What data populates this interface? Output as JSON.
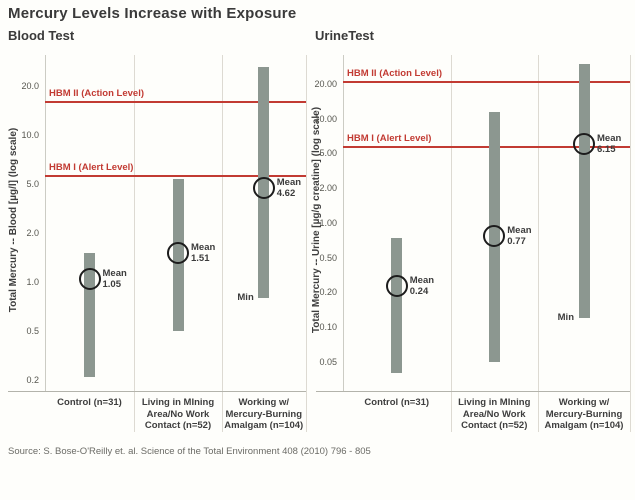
{
  "title": "Mercury Levels Increase with Exposure",
  "source": "Source: S. Bose-O'Reilly et. al. Science of the Total Environment 408 (2010) 796 - 805",
  "colors": {
    "background": "#fefefb",
    "bar": "#8c9790",
    "reference_line": "#c23b33",
    "mean_circle": "#1c1c1c",
    "grid": "#dddad2",
    "text_dark": "#3a3a3a",
    "text_gray": "#6b6b66"
  },
  "chart_data": [
    {
      "type": "range-bar",
      "title": "Blood Test",
      "ylabel": "Total Mercury -- Blood [µg/l] (log scale)",
      "yscale": "log",
      "yticks": [
        {
          "value": 20,
          "label": "20.0"
        },
        {
          "value": 10,
          "label": "10.0"
        },
        {
          "value": 5,
          "label": "5.0"
        },
        {
          "value": 2,
          "label": "2.0"
        },
        {
          "value": 1,
          "label": "1.0"
        },
        {
          "value": 0.5,
          "label": "0.5"
        },
        {
          "value": 0.2,
          "label": "0.2"
        }
      ],
      "categories": [
        {
          "lines": [
            "Control (n=31)"
          ]
        },
        {
          "lines": [
            "Living in MIning",
            "Area/No Work",
            "Contact (n=52)"
          ]
        },
        {
          "lines": [
            "Working w/",
            "Mercury-Burning",
            "Amalgam (n=104)"
          ]
        }
      ],
      "series": [
        {
          "category": "Control (n=31)",
          "min": 0.21,
          "max": 1.5,
          "mean": 1.05,
          "mean_label": "Mean",
          "mean_value_label": "1.05"
        },
        {
          "category": "Living in MIning Area/No Work Contact (n=52)",
          "min": 0.5,
          "max": 5.4,
          "mean": 1.51,
          "mean_label": "Mean",
          "mean_value_label": "1.51"
        },
        {
          "category": "Working w/ Mercury-Burning Amalgam (n=104)",
          "min": 0.8,
          "max": 26,
          "mean": 4.62,
          "mean_label": "Mean",
          "mean_value_label": "4.62",
          "min_label": "Min"
        }
      ],
      "reference_lines": [
        {
          "label": "HBM II (Action Level)",
          "value": 15.9
        },
        {
          "label": "HBM I (Alert Level)",
          "value": 5.6
        }
      ]
    },
    {
      "type": "range-bar",
      "title": "UrineTest",
      "ylabel": "Total Mercury -- Urine [µg/g creatine] (log scale)",
      "yscale": "log",
      "yticks": [
        {
          "value": 20,
          "label": "20.00"
        },
        {
          "value": 10,
          "label": "10.00"
        },
        {
          "value": 5,
          "label": "5.00"
        },
        {
          "value": 2,
          "label": "2.00"
        },
        {
          "value": 1,
          "label": "1.00"
        },
        {
          "value": 0.5,
          "label": "0.50"
        },
        {
          "value": 0.2,
          "label": "0.20"
        },
        {
          "value": 0.1,
          "label": "0.10"
        },
        {
          "value": 0.05,
          "label": "0.05"
        }
      ],
      "categories": [
        {
          "lines": [
            "Control (n=31)"
          ]
        },
        {
          "lines": [
            "Living in MIning",
            "Area/No Work",
            "Contact (n=52)"
          ]
        },
        {
          "lines": [
            "Working w/",
            "Mercury-Burning",
            "Amalgam (n=104)"
          ]
        }
      ],
      "series": [
        {
          "category": "Control (n=31)",
          "min": 0.04,
          "max": 0.75,
          "mean": 0.24,
          "mean_label": "Mean",
          "mean_value_label": "0.24"
        },
        {
          "category": "Living in MIning Area/No Work Contact (n=52)",
          "min": 0.05,
          "max": 11.5,
          "mean": 0.77,
          "mean_label": "Mean",
          "mean_value_label": "0.77"
        },
        {
          "category": "Working w/ Mercury-Burning Amalgam (n=104)",
          "min": 0.12,
          "max": 30,
          "mean": 6.15,
          "mean_label": "Mean",
          "mean_value_label": "6.15",
          "min_label": "Min"
        }
      ],
      "reference_lines": [
        {
          "label": "HBM II (Action Level)",
          "value": 21
        },
        {
          "label": "HBM I (Alert Level)",
          "value": 5.7
        }
      ]
    }
  ]
}
